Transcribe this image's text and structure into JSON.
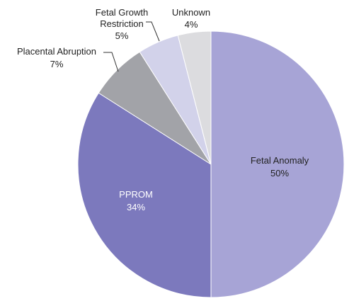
{
  "chart_data": {
    "type": "pie",
    "title": "",
    "slices": [
      {
        "label": "Fetal Anomaly",
        "value": 50,
        "value_label": "50%",
        "color": "#a7a4d6"
      },
      {
        "label": "PPROM",
        "value": 34,
        "value_label": "34%",
        "color": "#7c79bd"
      },
      {
        "label": "Placental Abruption",
        "value": 7,
        "value_label": "7%",
        "color": "#a2a3a8"
      },
      {
        "label": "Fetal Growth Restriction",
        "value": 5,
        "value_label": "5%",
        "color": "#d2d2ea"
      },
      {
        "label": "Unknown",
        "value": 4,
        "value_label": "4%",
        "color": "#dcdcdf"
      }
    ],
    "start_direction": "top",
    "direction": "clockwise",
    "legend": "none"
  }
}
